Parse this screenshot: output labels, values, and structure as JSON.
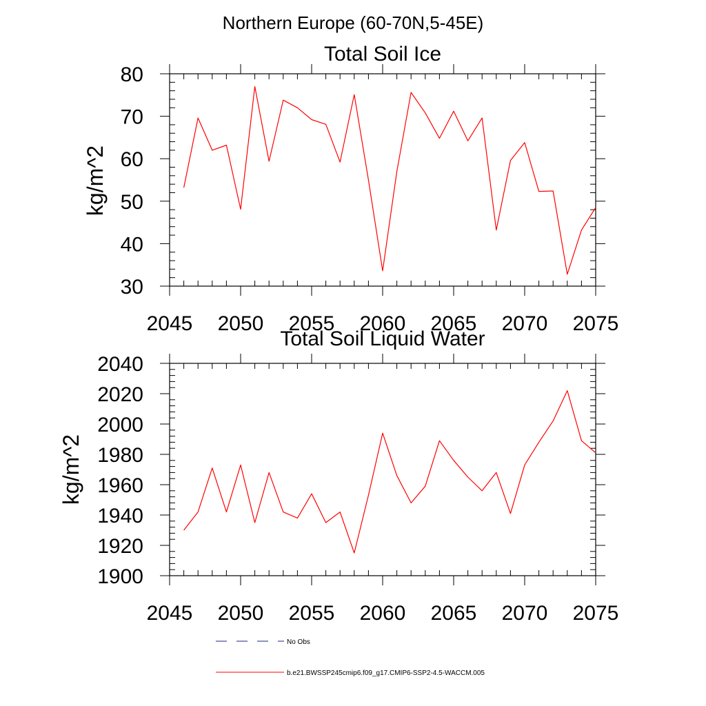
{
  "figure": {
    "title": "Northern Europe (60-70N,5-45E)"
  },
  "chart_data": [
    {
      "type": "line",
      "title": "Total Soil Ice",
      "xlabel": "",
      "ylabel": "kg/m^2",
      "xlim": [
        2045,
        2075
      ],
      "ylim": [
        30,
        80
      ],
      "xticks": [
        2045,
        2050,
        2055,
        2060,
        2065,
        2070,
        2075
      ],
      "yticks": [
        30,
        40,
        50,
        60,
        70,
        80
      ],
      "x_minor_step": 1,
      "y_minor_step": 2,
      "grid": false,
      "series": [
        {
          "name": "b.e21.BWSSP245cmip6.f09_g17.CMIP6-SSP2-4.5-WACCM.005",
          "color": "#ff0000",
          "x": [
            2046,
            2047,
            2048,
            2049,
            2050,
            2051,
            2052,
            2053,
            2054,
            2055,
            2056,
            2057,
            2058,
            2059,
            2060,
            2061,
            2062,
            2063,
            2064,
            2065,
            2066,
            2067,
            2068,
            2069,
            2070,
            2071,
            2072,
            2073,
            2074,
            2075
          ],
          "y": [
            53.2,
            69.6,
            62.0,
            63.2,
            48.1,
            77.0,
            59.4,
            73.8,
            72.0,
            69.2,
            68.1,
            59.2,
            75.1,
            55.0,
            33.6,
            57.0,
            75.6,
            70.8,
            64.8,
            71.2,
            64.2,
            69.6,
            43.2,
            59.6,
            63.8,
            52.3,
            52.4,
            32.8,
            43.2,
            48.5
          ]
        }
      ]
    },
    {
      "type": "line",
      "title": "Total Soil Liquid Water",
      "xlabel": "",
      "ylabel": "kg/m^2",
      "xlim": [
        2045,
        2075
      ],
      "ylim": [
        1900,
        2040
      ],
      "xticks": [
        2045,
        2050,
        2055,
        2060,
        2065,
        2070,
        2075
      ],
      "yticks": [
        1900,
        1920,
        1940,
        1960,
        1980,
        2000,
        2020,
        2040
      ],
      "x_minor_step": 1,
      "y_minor_step": 4,
      "grid": false,
      "series": [
        {
          "name": "b.e21.BWSSP245cmip6.f09_g17.CMIP6-SSP2-4.5-WACCM.005",
          "color": "#ff0000",
          "x": [
            2046,
            2047,
            2048,
            2049,
            2050,
            2051,
            2052,
            2053,
            2054,
            2055,
            2056,
            2057,
            2058,
            2059,
            2060,
            2061,
            2062,
            2063,
            2064,
            2065,
            2066,
            2067,
            2068,
            2069,
            2070,
            2071,
            2072,
            2073,
            2074,
            2075
          ],
          "y": [
            1930,
            1942,
            1971,
            1942,
            1973,
            1935,
            1968,
            1942,
            1938,
            1954,
            1935,
            1942,
            1915,
            1953,
            1994,
            1966,
            1948,
            1959,
            1989,
            1976,
            1965,
            1956,
            1968,
            1941,
            1973,
            1988,
            2002,
            2022,
            1989,
            1981
          ]
        }
      ]
    }
  ],
  "legend": {
    "items": [
      {
        "label": "No Obs",
        "color": "#1a237e",
        "style": "dashed"
      },
      {
        "label": "b.e21.BWSSP245cmip6.f09_g17.CMIP6-SSP2-4.5-WACCM.005",
        "color": "#ff0000",
        "style": "solid"
      }
    ]
  }
}
